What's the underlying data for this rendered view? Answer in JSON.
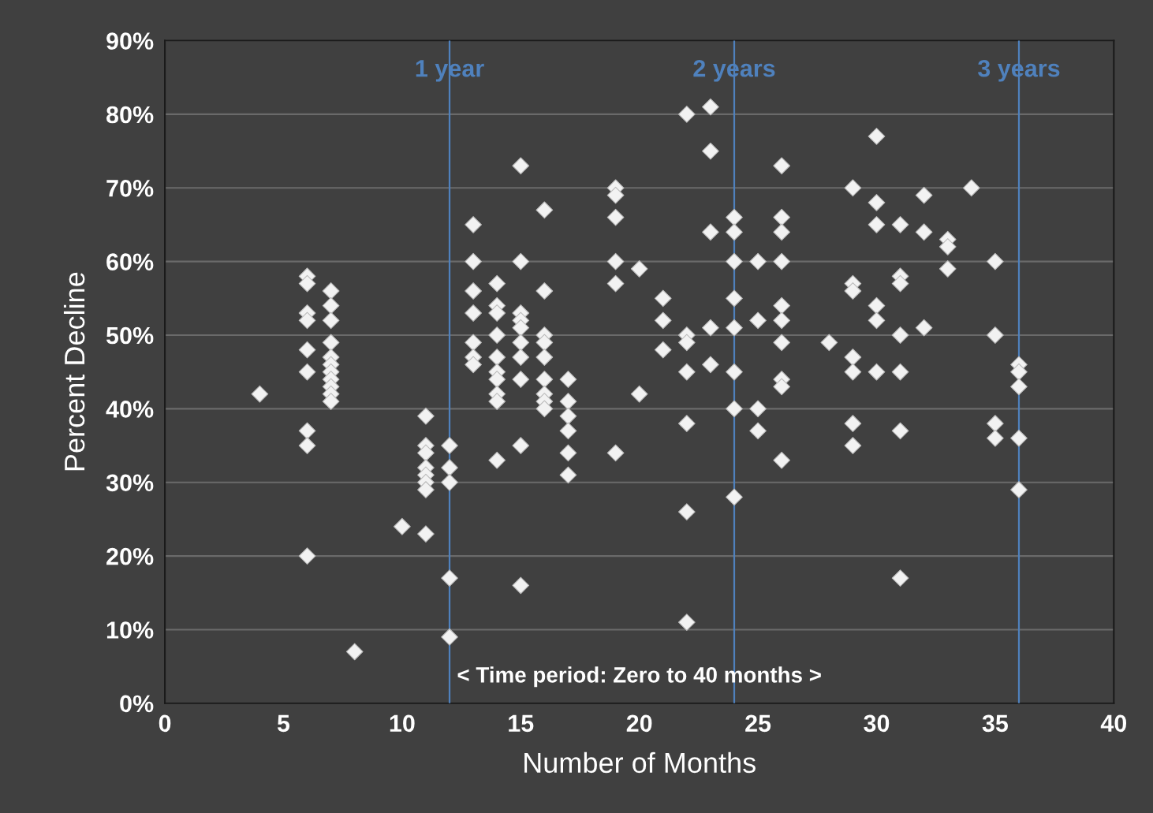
{
  "chart_data": {
    "type": "scatter",
    "xlabel": "Number of Months",
    "ylabel": "Percent Decline",
    "x": [
      4,
      6,
      6,
      6,
      6,
      6,
      6,
      6,
      6,
      6,
      7,
      7,
      7,
      7,
      7,
      7,
      7,
      7,
      7,
      7,
      7,
      8,
      10,
      11,
      11,
      11,
      11,
      11,
      11,
      11,
      11,
      12,
      12,
      12,
      12,
      12,
      13,
      13,
      13,
      13,
      13,
      13,
      13,
      14,
      14,
      14,
      14,
      14,
      14,
      14,
      14,
      14,
      14,
      15,
      15,
      15,
      15,
      15,
      15,
      15,
      15,
      15,
      15,
      16,
      16,
      16,
      16,
      16,
      16,
      16,
      16,
      16,
      17,
      17,
      17,
      17,
      17,
      17,
      19,
      19,
      19,
      19,
      19,
      19,
      20,
      20,
      21,
      21,
      21,
      22,
      22,
      22,
      22,
      22,
      22,
      22,
      23,
      23,
      23,
      23,
      23,
      24,
      24,
      24,
      24,
      24,
      24,
      24,
      24,
      25,
      25,
      25,
      25,
      26,
      26,
      26,
      26,
      26,
      26,
      26,
      26,
      26,
      26,
      28,
      29,
      29,
      29,
      29,
      29,
      29,
      29,
      30,
      30,
      30,
      30,
      30,
      30,
      31,
      31,
      31,
      31,
      31,
      31,
      31,
      32,
      32,
      32,
      33,
      33,
      33,
      34,
      35,
      35,
      35,
      35,
      36,
      36,
      36,
      36,
      36
    ],
    "values": [
      42,
      58,
      57,
      53,
      52,
      48,
      45,
      37,
      35,
      20,
      56,
      54,
      52,
      49,
      47,
      46,
      45,
      44,
      43,
      42,
      41,
      7,
      24,
      39,
      35,
      34,
      32,
      31,
      30,
      29,
      23,
      35,
      32,
      30,
      17,
      9,
      65,
      60,
      56,
      53,
      49,
      47,
      46,
      57,
      54,
      53,
      50,
      47,
      45,
      44,
      42,
      41,
      33,
      73,
      60,
      53,
      52,
      51,
      49,
      47,
      44,
      35,
      16,
      67,
      56,
      50,
      49,
      47,
      44,
      42,
      41,
      40,
      44,
      41,
      39,
      37,
      34,
      31,
      70,
      69,
      66,
      60,
      57,
      34,
      59,
      42,
      55,
      52,
      48,
      80,
      50,
      49,
      45,
      38,
      26,
      11,
      81,
      75,
      64,
      51,
      46,
      66,
      64,
      60,
      55,
      51,
      45,
      40,
      28,
      60,
      52,
      40,
      37,
      73,
      66,
      64,
      60,
      54,
      52,
      49,
      44,
      43,
      33,
      49,
      70,
      57,
      56,
      47,
      45,
      38,
      35,
      77,
      68,
      65,
      54,
      52,
      45,
      65,
      58,
      57,
      50,
      45,
      37,
      17,
      69,
      64,
      51,
      63,
      62,
      59,
      70,
      60,
      50,
      38,
      36,
      46,
      45,
      43,
      36,
      29
    ],
    "color": "#f2f2f2",
    "marker": "diamond",
    "xlim": [
      0,
      40
    ],
    "xticks": [
      0,
      5,
      10,
      15,
      20,
      25,
      30,
      35,
      40
    ],
    "ylim": [
      0,
      90
    ],
    "yticks": [
      {
        "value": 0,
        "label": "0%"
      },
      {
        "value": 10,
        "label": "10%"
      },
      {
        "value": 20,
        "label": "20%"
      },
      {
        "value": 30,
        "label": "30%"
      },
      {
        "value": 40,
        "label": "40%"
      },
      {
        "value": 50,
        "label": "50%"
      },
      {
        "value": 60,
        "label": "60%"
      },
      {
        "value": 70,
        "label": "70%"
      },
      {
        "value": 80,
        "label": "80%"
      },
      {
        "value": 90,
        "label": "90%"
      }
    ],
    "grid": "y",
    "ref_lines": [
      {
        "axis": "x",
        "value": 12,
        "label": "1 year",
        "color": "#4f81bd"
      },
      {
        "axis": "x",
        "value": 24,
        "label": "2 years",
        "color": "#4f81bd"
      },
      {
        "axis": "x",
        "value": 36,
        "label": "3 years",
        "color": "#4f81bd"
      }
    ],
    "annotations": [
      "< Time period: Zero to 40 months >"
    ]
  }
}
